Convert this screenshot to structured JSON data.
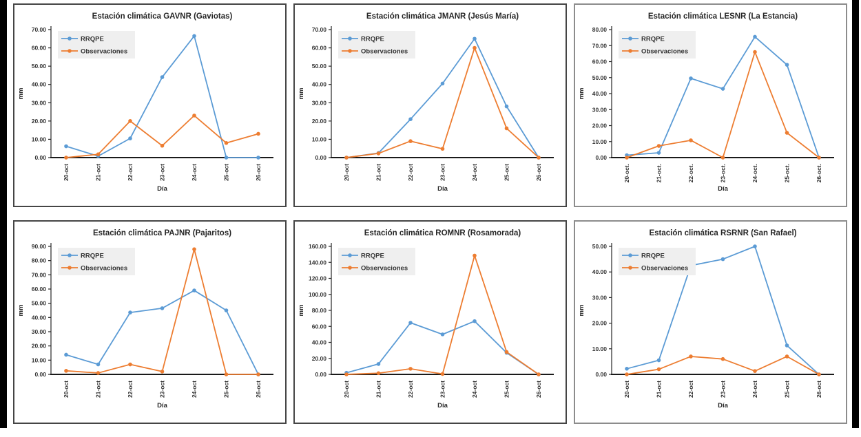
{
  "page": {
    "background": "#ffffff",
    "edge_bar_color": "#000000"
  },
  "chart_defaults": {
    "rrqpe_color": "#5B9BD5",
    "observaciones_color": "#ED7D31",
    "legend_background": "#EFEFEF",
    "axis_color": "#262626",
    "legend_position": "top-left",
    "grid": false
  },
  "chart_data": [
    {
      "type": "line",
      "station_code": "GAVNR",
      "title": "Estación climática GAVNR (Gaviotas)",
      "xlabel": "Día",
      "ylabel": "mm",
      "ylim": [
        0,
        70
      ],
      "ytick_step": 10,
      "categories": [
        "20-oct",
        "21-oct",
        "22-oct",
        "23-oct",
        "24-oct",
        "25-oct",
        "26-oct"
      ],
      "series": [
        {
          "name": "RRQPE",
          "color": "#5B9BD5",
          "values": [
            6.2,
            0.8,
            10.5,
            44.0,
            66.5,
            0.0,
            0.0
          ]
        },
        {
          "name": "Observaciones",
          "color": "#ED7D31",
          "values": [
            0.0,
            1.8,
            20.0,
            6.5,
            23.0,
            8.0,
            13.0
          ]
        }
      ]
    },
    {
      "type": "line",
      "station_code": "JMANR",
      "title": "Estación climática JMANR (Jesús María)",
      "xlabel": "Día",
      "ylabel": "mm",
      "ylim": [
        0,
        70
      ],
      "ytick_step": 10,
      "categories": [
        "20-oct",
        "21-oct",
        "22-oct",
        "23-oct",
        "24-oct",
        "25-oct",
        "26-oct"
      ],
      "series": [
        {
          "name": "RRQPE",
          "color": "#5B9BD5",
          "values": [
            0.0,
            2.5,
            21.0,
            40.5,
            65.0,
            28.0,
            0.0
          ]
        },
        {
          "name": "Observaciones",
          "color": "#ED7D31",
          "values": [
            0.0,
            2.3,
            9.0,
            4.8,
            60.0,
            16.0,
            0.0
          ]
        }
      ]
    },
    {
      "type": "line",
      "station_code": "LESNR",
      "title": "Estación climática LESNR (La Estancia)",
      "xlabel": "Día",
      "ylabel": "mm",
      "ylim": [
        0,
        80
      ],
      "ytick_step": 10,
      "categories": [
        "20-oct.",
        "21-oct.",
        "22-oct.",
        "23-oct.",
        "24-oct.",
        "25-oct.",
        "26-oct."
      ],
      "series": [
        {
          "name": "RRQPE",
          "color": "#5B9BD5",
          "values": [
            1.5,
            3.0,
            49.5,
            43.0,
            75.5,
            58.0,
            0.0
          ]
        },
        {
          "name": "Observaciones",
          "color": "#ED7D31",
          "values": [
            0.0,
            7.3,
            10.8,
            0.0,
            66.0,
            15.5,
            0.0
          ]
        }
      ]
    },
    {
      "type": "line",
      "station_code": "PAJNR",
      "title": "Estación climática PAJNR (Pajaritos)",
      "xlabel": "Día",
      "ylabel": "mm",
      "ylim": [
        0,
        90
      ],
      "ytick_step": 10,
      "categories": [
        "20-oct",
        "21-oct",
        "22-oct",
        "23-oct",
        "24-oct",
        "25-oct",
        "26-oct"
      ],
      "series": [
        {
          "name": "RRQPE",
          "color": "#5B9BD5",
          "values": [
            13.8,
            7.0,
            43.5,
            46.5,
            59.0,
            45.0,
            0.0
          ]
        },
        {
          "name": "Observaciones",
          "color": "#ED7D31",
          "values": [
            2.5,
            1.0,
            7.0,
            2.0,
            88.0,
            0.0,
            0.0
          ]
        }
      ]
    },
    {
      "type": "line",
      "station_code": "ROMNR",
      "title": "Estación climática ROMNR (Rosamorada)",
      "xlabel": "Día",
      "ylabel": "mm",
      "ylim": [
        0,
        160
      ],
      "ytick_step": 20,
      "categories": [
        "20-oct",
        "21-oct",
        "22-oct",
        "23-oct",
        "24-oct",
        "25-oct",
        "26-oct"
      ],
      "series": [
        {
          "name": "RRQPE",
          "color": "#5B9BD5",
          "values": [
            2.0,
            13.0,
            64.5,
            50.0,
            66.5,
            27.0,
            0.0
          ]
        },
        {
          "name": "Observaciones",
          "color": "#ED7D31",
          "values": [
            0.0,
            1.5,
            7.0,
            0.5,
            148.5,
            28.0,
            0.0
          ]
        }
      ]
    },
    {
      "type": "line",
      "station_code": "RSRNR",
      "title": "Estación climática RSRNR (San Rafael)",
      "xlabel": "Día",
      "ylabel": "mm",
      "ylim": [
        0,
        50
      ],
      "ytick_step": 10,
      "categories": [
        "20-oct",
        "21-oct",
        "22-oct",
        "23-oct",
        "24-oct",
        "25-oct",
        "26-oct"
      ],
      "series": [
        {
          "name": "RRQPE",
          "color": "#5B9BD5",
          "values": [
            2.2,
            5.5,
            42.5,
            45.0,
            50.0,
            11.3,
            0.0
          ]
        },
        {
          "name": "Observaciones",
          "color": "#ED7D31",
          "values": [
            0.0,
            2.0,
            7.0,
            6.0,
            1.3,
            7.0,
            0.0
          ]
        }
      ]
    }
  ]
}
